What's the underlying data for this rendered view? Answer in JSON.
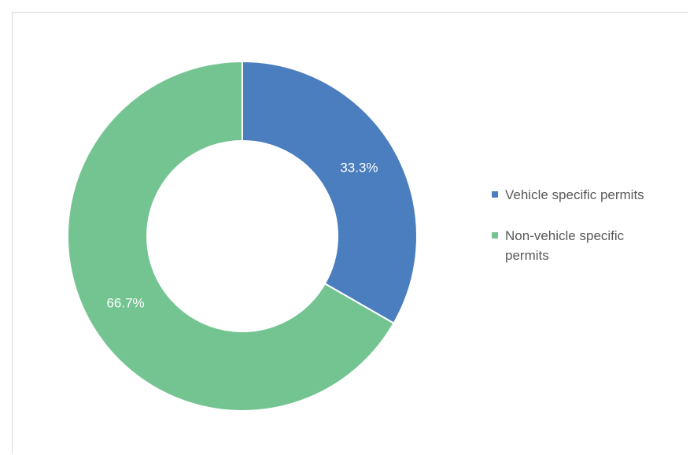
{
  "chart_data": {
    "type": "pie",
    "donut": true,
    "labels": [
      "Vehicle specific permits",
      "Non-vehicle specific permits"
    ],
    "values": [
      33.3,
      66.7
    ],
    "value_labels": [
      "33.3%",
      "66.7%"
    ],
    "colors": [
      "#4a7ebf",
      "#74c492"
    ],
    "legend_position": "right"
  }
}
